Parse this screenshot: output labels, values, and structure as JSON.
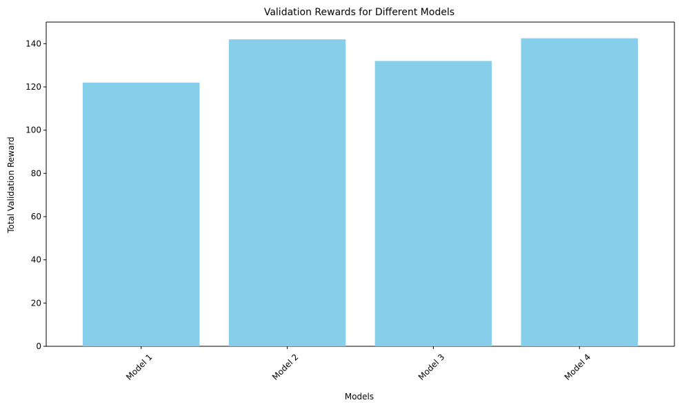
{
  "chart_data": {
    "type": "bar",
    "title": "Validation Rewards for Different Models",
    "xlabel": "Models",
    "ylabel": "Total Validation Reward",
    "categories": [
      "Model 1",
      "Model 2",
      "Model 3",
      "Model 4"
    ],
    "values": [
      122,
      142,
      132,
      142.5
    ],
    "ylim": [
      0,
      150
    ],
    "yticks": [
      0,
      20,
      40,
      60,
      80,
      100,
      120,
      140
    ],
    "ytick_labels": [
      "0",
      "20",
      "40",
      "60",
      "80",
      "100",
      "120",
      "140"
    ],
    "xtick_rotation": 45,
    "bar_color": "#87ceeb",
    "grid": false,
    "legend": "none"
  }
}
